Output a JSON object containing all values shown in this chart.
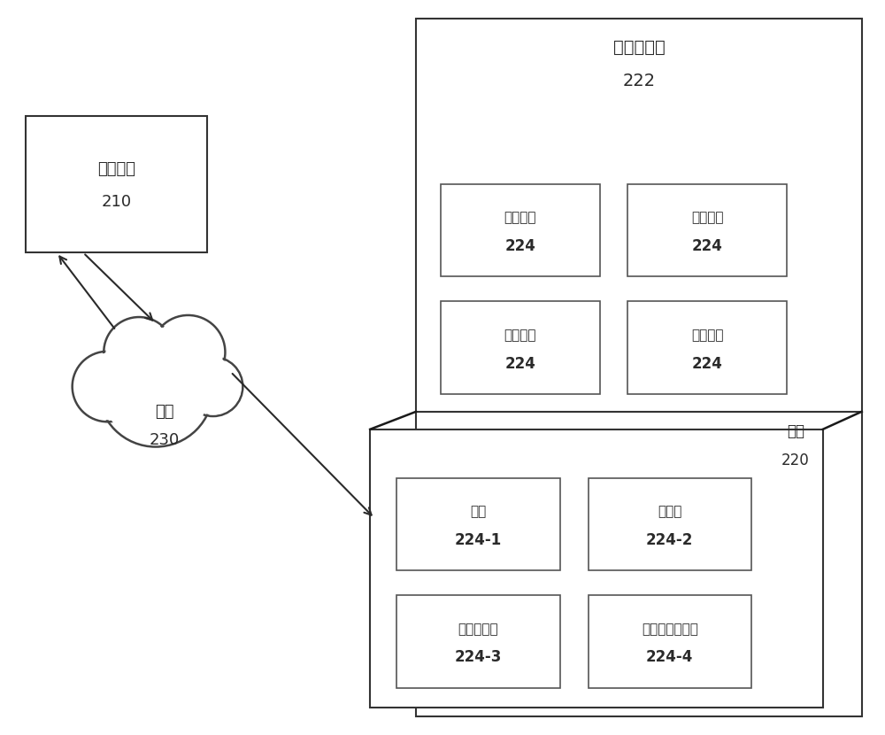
{
  "title": "云计算环境",
  "title_num": "222",
  "platform_label": "平台",
  "platform_num": "220",
  "network_label": "网络",
  "network_num": "230",
  "user_device_label": "用户设备",
  "user_device_num": "210",
  "compute_resources": [
    {
      "label": "计算资源",
      "num": "224",
      "row": 0,
      "col": 0
    },
    {
      "label": "计算资源",
      "num": "224",
      "row": 0,
      "col": 1
    },
    {
      "label": "计算资源",
      "num": "224",
      "row": 1,
      "col": 0
    },
    {
      "label": "计算资源",
      "num": "224",
      "row": 1,
      "col": 1
    }
  ],
  "platform_resources": [
    {
      "label": "应用",
      "num": "224-1",
      "row": 0,
      "col": 0
    },
    {
      "label": "虚拟机",
      "num": "224-2",
      "row": 0,
      "col": 1
    },
    {
      "label": "虚拟化存储",
      "num": "224-3",
      "row": 1,
      "col": 0
    },
    {
      "label": "虚拟机监控程序",
      "num": "224-4",
      "row": 1,
      "col": 1
    }
  ],
  "bg_color": "#ffffff",
  "text_color": "#2a2a2a",
  "arrow_color": "#2a2a2a",
  "box_edge_color": "#555555",
  "outer_edge_color": "#333333"
}
